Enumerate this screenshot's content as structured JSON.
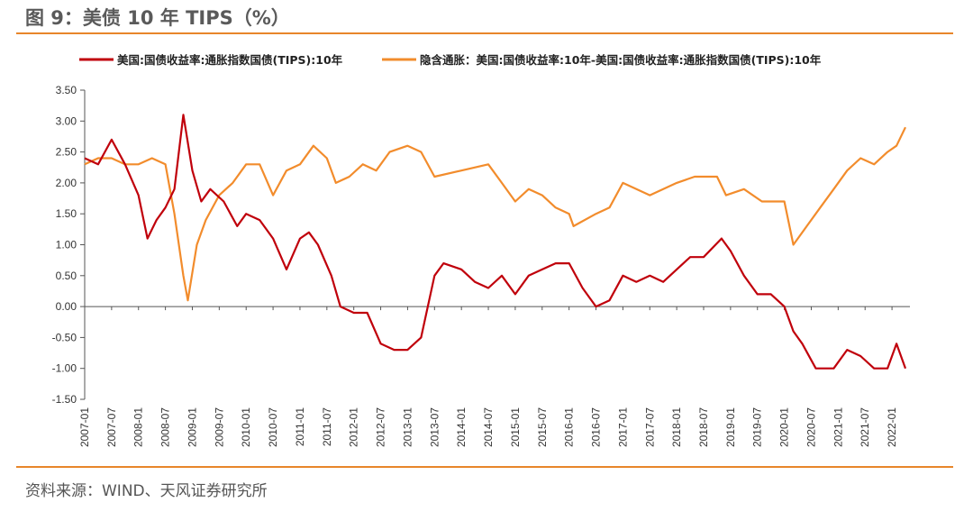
{
  "header": {
    "title": "图 9：美债 10 年 TIPS（%）"
  },
  "footer": {
    "source": "资料来源：WIND、天风证券研究所"
  },
  "colors": {
    "accent": "#e8862a",
    "real_yield": "#c0000b",
    "breakeven": "#f28c2c",
    "negative_label": "#cc0000"
  },
  "chart_data": {
    "type": "line",
    "title": "",
    "xlabel": "",
    "ylabel": "",
    "ylim": [
      -1.5,
      3.5
    ],
    "yticks": [
      "3.50",
      "3.00",
      "2.50",
      "2.00",
      "1.50",
      "1.00",
      "0.50",
      "0.00",
      "-0.50",
      "-1.00",
      "-1.50"
    ],
    "xticks": [
      "2007-01",
      "2007-07",
      "2008-01",
      "2008-07",
      "2009-01",
      "2009-07",
      "2010-01",
      "2010-07",
      "2011-01",
      "2011-07",
      "2012-01",
      "2012-07",
      "2013-01",
      "2013-07",
      "2014-01",
      "2014-07",
      "2015-01",
      "2015-07",
      "2016-01",
      "2016-07",
      "2017-01",
      "2017-07",
      "2018-01",
      "2018-07",
      "2019-01",
      "2019-07",
      "2020-01",
      "2020-07",
      "2021-01",
      "2021-07",
      "2022-01"
    ],
    "legend_position": "top",
    "grid": false,
    "series": [
      {
        "name": "美国:国债收益率:通胀指数国债(TIPS):10年",
        "x": [
          "2007-01",
          "2007-04",
          "2007-07",
          "2007-10",
          "2008-01",
          "2008-03",
          "2008-05",
          "2008-07",
          "2008-09",
          "2008-11",
          "2009-01",
          "2009-03",
          "2009-05",
          "2009-08",
          "2009-11",
          "2010-01",
          "2010-04",
          "2010-07",
          "2010-10",
          "2011-01",
          "2011-03",
          "2011-05",
          "2011-08",
          "2011-10",
          "2012-01",
          "2012-04",
          "2012-07",
          "2012-10",
          "2013-01",
          "2013-04",
          "2013-07",
          "2013-09",
          "2014-01",
          "2014-04",
          "2014-07",
          "2014-10",
          "2015-01",
          "2015-04",
          "2015-07",
          "2015-10",
          "2016-01",
          "2016-04",
          "2016-07",
          "2016-10",
          "2017-01",
          "2017-04",
          "2017-07",
          "2017-10",
          "2018-01",
          "2018-04",
          "2018-07",
          "2018-11",
          "2019-01",
          "2019-04",
          "2019-07",
          "2019-10",
          "2020-01",
          "2020-03",
          "2020-05",
          "2020-08",
          "2020-12",
          "2021-03",
          "2021-06",
          "2021-09",
          "2021-12",
          "2022-02",
          "2022-04"
        ],
        "values": [
          2.4,
          2.3,
          2.7,
          2.3,
          1.8,
          1.1,
          1.4,
          1.6,
          1.9,
          3.1,
          2.2,
          1.7,
          1.9,
          1.7,
          1.3,
          1.5,
          1.4,
          1.1,
          0.6,
          1.1,
          1.2,
          1.0,
          0.5,
          0.0,
          -0.1,
          -0.1,
          -0.6,
          -0.7,
          -0.7,
          -0.5,
          0.5,
          0.7,
          0.6,
          0.4,
          0.3,
          0.5,
          0.2,
          0.5,
          0.6,
          0.7,
          0.7,
          0.3,
          0.0,
          0.1,
          0.5,
          0.4,
          0.5,
          0.4,
          0.6,
          0.8,
          0.8,
          1.1,
          0.9,
          0.5,
          0.2,
          0.2,
          0.0,
          -0.4,
          -0.6,
          -1.0,
          -1.0,
          -0.7,
          -0.8,
          -1.0,
          -1.0,
          -0.6,
          -1.0
        ]
      },
      {
        "name": "隐含通胀：美国:国债收益率:10年-美国:国债收益率:通胀指数国债(TIPS):10年",
        "x": [
          "2007-01",
          "2007-04",
          "2007-07",
          "2007-10",
          "2008-01",
          "2008-04",
          "2008-07",
          "2008-09",
          "2008-11",
          "2008-12",
          "2009-02",
          "2009-04",
          "2009-07",
          "2009-10",
          "2010-01",
          "2010-04",
          "2010-07",
          "2010-10",
          "2011-01",
          "2011-04",
          "2011-07",
          "2011-09",
          "2011-12",
          "2012-03",
          "2012-06",
          "2012-09",
          "2013-01",
          "2013-04",
          "2013-07",
          "2014-01",
          "2014-07",
          "2014-10",
          "2015-01",
          "2015-04",
          "2015-07",
          "2015-10",
          "2016-01",
          "2016-02",
          "2016-07",
          "2016-10",
          "2017-01",
          "2017-07",
          "2017-10",
          "2018-01",
          "2018-05",
          "2018-10",
          "2018-12",
          "2019-04",
          "2019-08",
          "2019-11",
          "2020-01",
          "2020-03",
          "2020-06",
          "2020-09",
          "2020-12",
          "2021-03",
          "2021-06",
          "2021-09",
          "2021-12",
          "2022-02",
          "2022-04"
        ],
        "values": [
          2.3,
          2.4,
          2.4,
          2.3,
          2.3,
          2.4,
          2.3,
          1.5,
          0.5,
          0.1,
          1.0,
          1.4,
          1.8,
          2.0,
          2.3,
          2.3,
          1.8,
          2.2,
          2.3,
          2.6,
          2.4,
          2.0,
          2.1,
          2.3,
          2.2,
          2.5,
          2.6,
          2.5,
          2.1,
          2.2,
          2.3,
          2.0,
          1.7,
          1.9,
          1.8,
          1.6,
          1.5,
          1.3,
          1.5,
          1.6,
          2.0,
          1.8,
          1.9,
          2.0,
          2.1,
          2.1,
          1.8,
          1.9,
          1.7,
          1.7,
          1.7,
          1.0,
          1.3,
          1.6,
          1.9,
          2.2,
          2.4,
          2.3,
          2.5,
          2.6,
          2.9
        ]
      }
    ]
  }
}
